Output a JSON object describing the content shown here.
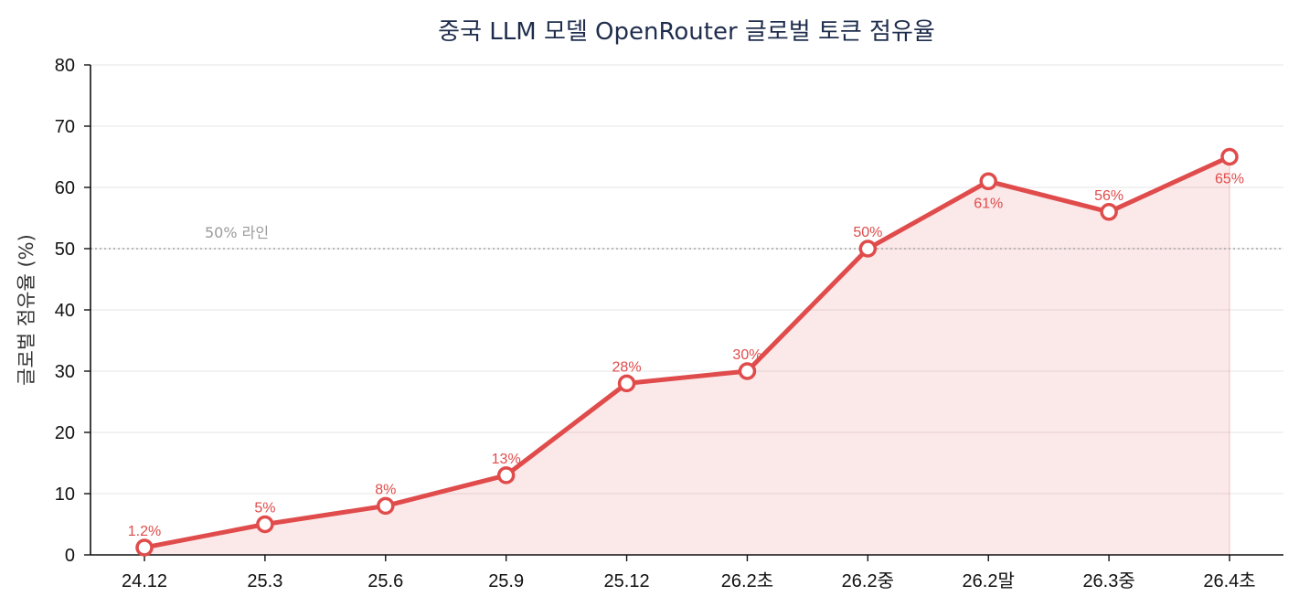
{
  "chart_data": {
    "type": "line",
    "title": "중국 LLM 모델 OpenRouter 글로벌 토큰 점유율",
    "xlabel": "",
    "ylabel": "글로벌 점유율 (%)",
    "categories": [
      "24.12",
      "25.3",
      "25.6",
      "25.9",
      "25.12",
      "26.2초",
      "26.2중",
      "26.2말",
      "26.3중",
      "26.4초"
    ],
    "series": [
      {
        "values": [
          1.2,
          5,
          8,
          13,
          28,
          30,
          50,
          61,
          56,
          65
        ],
        "labels": [
          "1.2%",
          "5%",
          "8%",
          "13%",
          "28%",
          "30%",
          "50%",
          "61%",
          "56%",
          "65%"
        ],
        "label_position": [
          "above",
          "above",
          "above",
          "above",
          "above",
          "above",
          "above",
          "below",
          "above",
          "below"
        ],
        "color": "#e04b4b",
        "fill": "area"
      }
    ],
    "ylim": [
      0,
      80
    ],
    "yticks": [
      0,
      10,
      20,
      30,
      40,
      50,
      60,
      70,
      80
    ],
    "grid": "horizontal",
    "reference_line": {
      "value": 50,
      "label": "50% 라인",
      "color": "#b0b0b0"
    }
  }
}
